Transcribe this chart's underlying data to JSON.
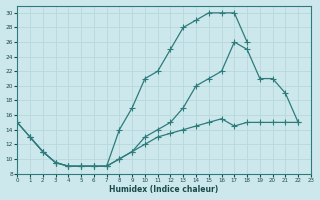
{
  "bg_color": "#cde8ec",
  "line_color": "#2d7b7b",
  "grid_color": "#b8d8dc",
  "xlabel": "Humidex (Indice chaleur)",
  "xlim": [
    0,
    23
  ],
  "ylim": [
    8,
    31
  ],
  "xticks": [
    0,
    1,
    2,
    3,
    4,
    5,
    6,
    7,
    8,
    9,
    10,
    11,
    12,
    13,
    14,
    15,
    16,
    17,
    18,
    19,
    20,
    21,
    22,
    23
  ],
  "yticks": [
    8,
    10,
    12,
    14,
    16,
    18,
    20,
    22,
    24,
    26,
    28,
    30
  ],
  "line1_x": [
    0,
    1,
    2,
    3,
    4,
    5,
    6,
    7,
    8,
    9,
    10,
    11,
    12,
    13,
    14,
    15,
    16,
    17,
    18
  ],
  "line1_y": [
    15,
    13,
    11,
    9.5,
    9,
    9,
    9,
    9,
    14,
    17,
    21,
    22,
    25,
    28,
    29,
    30,
    30,
    30,
    26
  ],
  "line2_x": [
    0,
    1,
    2,
    3,
    4,
    5,
    6,
    7,
    8,
    9,
    10,
    11,
    12,
    13,
    14,
    15,
    16,
    17,
    18,
    19,
    20,
    21,
    22
  ],
  "line2_y": [
    15,
    13,
    11,
    9.5,
    9,
    9,
    9,
    9,
    10,
    11,
    13,
    14,
    15,
    17,
    20,
    21,
    22,
    26,
    25,
    21,
    21,
    19,
    15
  ],
  "line3_x": [
    1,
    2,
    3,
    4,
    5,
    6,
    7,
    8,
    9,
    10,
    11,
    12,
    13,
    14,
    15,
    16,
    17,
    18,
    19,
    20,
    21,
    22
  ],
  "line3_y": [
    13,
    11,
    9.5,
    9,
    9,
    9,
    9,
    10,
    11,
    12,
    13,
    13.5,
    14,
    14.5,
    15,
    15.5,
    14.5,
    15,
    15,
    15,
    15,
    15
  ]
}
